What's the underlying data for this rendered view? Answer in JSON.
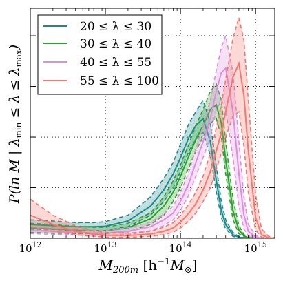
{
  "chart_data": {
    "type": "line",
    "xscale": "log",
    "xlim": [
      1000000000000.0,
      1800000000000000.0
    ],
    "ylim": [
      0,
      1.0
    ],
    "grid": true,
    "legend_position": "top-left",
    "xlabel": "M_200m [h^-1 M_⊙]",
    "ylabel": "P(ln M | λ_min ≤ λ ≤ λ_max)",
    "x_ticks": [
      {
        "value": 1000000000000.0,
        "base": "10",
        "exp": "12"
      },
      {
        "value": 10000000000000.0,
        "base": "10",
        "exp": "13"
      },
      {
        "value": 100000000000000.0,
        "base": "10",
        "exp": "14"
      },
      {
        "value": 1000000000000000.0,
        "base": "10",
        "exp": "15"
      }
    ],
    "grid_y": [
      0.22,
      0.44,
      0.66,
      0.88
    ],
    "x_sample": [
      1000000000000.0,
      2000000000000.0,
      4000000000000.0,
      7000000000000.0,
      10000000000000.0,
      20000000000000.0,
      40000000000000.0,
      60000000000000.0,
      80000000000000.0,
      100000000000000.0,
      130000000000000.0,
      160000000000000.0,
      200000000000000.0,
      250000000000000.0,
      300000000000000.0,
      350000000000000.0,
      400000000000000.0,
      500000000000000.0,
      600000000000000.0,
      700000000000000.0,
      800000000000000.0,
      1000000000000000.0,
      1200000000000000.0,
      1500000000000000.0,
      1800000000000000.0
    ],
    "series": [
      {
        "name": "20 ≤ λ ≤ 30",
        "color": "#1b8a8a",
        "median": [
          0.06,
          0.055,
          0.05,
          0.05,
          0.052,
          0.075,
          0.14,
          0.21,
          0.28,
          0.35,
          0.44,
          0.49,
          0.52,
          0.42,
          0.25,
          0.12,
          0.06,
          0.015,
          0.004,
          0.001,
          0,
          0,
          0,
          0,
          0
        ],
        "lower": [
          0.04,
          0.038,
          0.033,
          0.032,
          0.034,
          0.05,
          0.1,
          0.16,
          0.22,
          0.29,
          0.38,
          0.43,
          0.46,
          0.36,
          0.2,
          0.09,
          0.04,
          0.008,
          0.002,
          0,
          0,
          0,
          0,
          0,
          0
        ],
        "upper": [
          0.08,
          0.075,
          0.068,
          0.068,
          0.072,
          0.1,
          0.18,
          0.26,
          0.33,
          0.41,
          0.5,
          0.55,
          0.6,
          0.5,
          0.31,
          0.16,
          0.08,
          0.025,
          0.007,
          0.002,
          0,
          0,
          0,
          0,
          0
        ]
      },
      {
        "name": "30 ≤ λ ≤ 40",
        "color": "#2ca02c",
        "median": [
          0.045,
          0.04,
          0.035,
          0.033,
          0.033,
          0.045,
          0.085,
          0.14,
          0.2,
          0.27,
          0.36,
          0.43,
          0.49,
          0.56,
          0.58,
          0.5,
          0.34,
          0.12,
          0.035,
          0.01,
          0.002,
          0,
          0,
          0,
          0
        ],
        "lower": [
          0.025,
          0.022,
          0.02,
          0.02,
          0.02,
          0.028,
          0.06,
          0.1,
          0.16,
          0.22,
          0.31,
          0.38,
          0.44,
          0.5,
          0.52,
          0.44,
          0.28,
          0.08,
          0.02,
          0.005,
          0.001,
          0,
          0,
          0,
          0
        ],
        "upper": [
          0.065,
          0.06,
          0.052,
          0.048,
          0.048,
          0.065,
          0.11,
          0.18,
          0.25,
          0.32,
          0.41,
          0.49,
          0.56,
          0.64,
          0.67,
          0.6,
          0.42,
          0.17,
          0.055,
          0.016,
          0.004,
          0,
          0,
          0,
          0
        ]
      },
      {
        "name": "40 ≤ λ ≤ 55",
        "color": "#dc8fdc",
        "median": [
          0.035,
          0.03,
          0.025,
          0.022,
          0.022,
          0.03,
          0.05,
          0.08,
          0.11,
          0.16,
          0.24,
          0.33,
          0.42,
          0.52,
          0.64,
          0.72,
          0.74,
          0.55,
          0.28,
          0.1,
          0.03,
          0.005,
          0,
          0,
          0
        ],
        "lower": [
          0.02,
          0.017,
          0.014,
          0.012,
          0.012,
          0.016,
          0.032,
          0.055,
          0.08,
          0.12,
          0.19,
          0.27,
          0.35,
          0.44,
          0.56,
          0.6,
          0.56,
          0.35,
          0.14,
          0.04,
          0.01,
          0.001,
          0,
          0,
          0
        ],
        "upper": [
          0.05,
          0.045,
          0.04,
          0.035,
          0.035,
          0.045,
          0.07,
          0.105,
          0.14,
          0.2,
          0.29,
          0.39,
          0.49,
          0.6,
          0.73,
          0.83,
          0.88,
          0.72,
          0.42,
          0.18,
          0.06,
          0.012,
          0.002,
          0,
          0
        ]
      },
      {
        "name": "55 ≤ λ ≤ 100",
        "color": "#f4786e",
        "median": [
          0.1,
          0.06,
          0.03,
          0.018,
          0.013,
          0.012,
          0.018,
          0.03,
          0.045,
          0.07,
          0.11,
          0.15,
          0.21,
          0.29,
          0.38,
          0.46,
          0.55,
          0.7,
          0.76,
          0.62,
          0.38,
          0.09,
          0.015,
          0.002,
          0
        ],
        "lower": [
          0.05,
          0.03,
          0.015,
          0.008,
          0.005,
          0.004,
          0.008,
          0.016,
          0.026,
          0.045,
          0.075,
          0.11,
          0.16,
          0.22,
          0.3,
          0.37,
          0.44,
          0.53,
          0.55,
          0.4,
          0.2,
          0.035,
          0.004,
          0,
          0
        ],
        "upper": [
          0.17,
          0.1,
          0.055,
          0.032,
          0.025,
          0.022,
          0.03,
          0.048,
          0.068,
          0.1,
          0.15,
          0.2,
          0.27,
          0.37,
          0.48,
          0.58,
          0.69,
          0.87,
          0.96,
          0.86,
          0.6,
          0.19,
          0.04,
          0.008,
          0.002
        ]
      }
    ]
  },
  "legend": {
    "labels": [
      "20 ≤ λ ≤ 30",
      "30 ≤ λ ≤ 40",
      "40 ≤ λ ≤ 55",
      "55 ≤ λ ≤ 100"
    ]
  },
  "labels": {
    "xlabel_parts": [
      "M",
      "200m",
      " [h",
      "−1",
      "M",
      "⊙",
      "]"
    ],
    "ylabel_parts": [
      "P(ln M | λ",
      "min",
      " ≤ λ ≤ λ",
      "max",
      ")"
    ]
  }
}
